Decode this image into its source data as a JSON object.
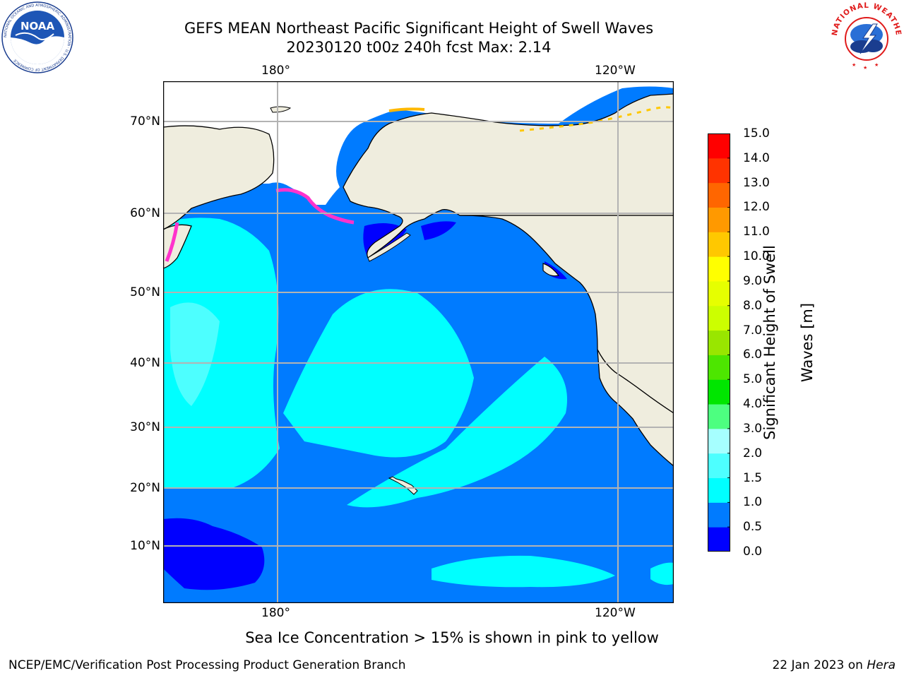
{
  "title": {
    "line1": "GEFS MEAN Northeast Pacific Significant Height of Swell Waves",
    "line2": "20230120 t00z 240h fcst   Max: 2.14"
  },
  "map": {
    "lon_ticks": [
      "180°",
      "120°W"
    ],
    "lat_ticks": [
      "70°N",
      "60°N",
      "50°N",
      "40°N",
      "30°N",
      "20°N",
      "10°N"
    ],
    "colors": {
      "land": "#efedde",
      "deep_blue": "#0000ff",
      "blue": "#007bff",
      "cyan": "#00ffff",
      "light_cyan": "#4dffff",
      "grid": "#b3b3b3"
    }
  },
  "colorbar": {
    "label": "Significant Height of Swell Waves [m]",
    "label_line1": "Significant Height of Swell",
    "label_line2": "Waves [m]",
    "levels": [
      "0.0",
      "0.5",
      "1.0",
      "1.5",
      "2.0",
      "3.0",
      "4.0",
      "5.0",
      "6.0",
      "7.0",
      "8.0",
      "9.0",
      "10.0",
      "11.0",
      "12.0",
      "13.0",
      "14.0",
      "15.0"
    ],
    "colors": [
      "#0000ff",
      "#007bff",
      "#00ffff",
      "#4dffff",
      "#a6ffff",
      "#4dff80",
      "#00e600",
      "#4de600",
      "#99e600",
      "#ccff00",
      "#e6ff00",
      "#ffff00",
      "#ffc800",
      "#ff9900",
      "#ff6600",
      "#ff3300",
      "#ff0000"
    ]
  },
  "note": "Sea Ice Concentration > 15% is shown in pink to yellow",
  "footer": {
    "left": "NCEP/EMC/Verification Post Processing Product Generation Branch",
    "right_prefix": "22 Jan 2023 on ",
    "right_host": "Hera"
  },
  "logos": {
    "noaa_text": "NOAA",
    "noaa_ring": "NATIONAL OCEANIC AND ATMOSPHERIC ADMINISTRATION · U.S. DEPARTMENT OF COMMERCE",
    "nws_ring": "NATIONAL WEATHER SERVICE"
  }
}
